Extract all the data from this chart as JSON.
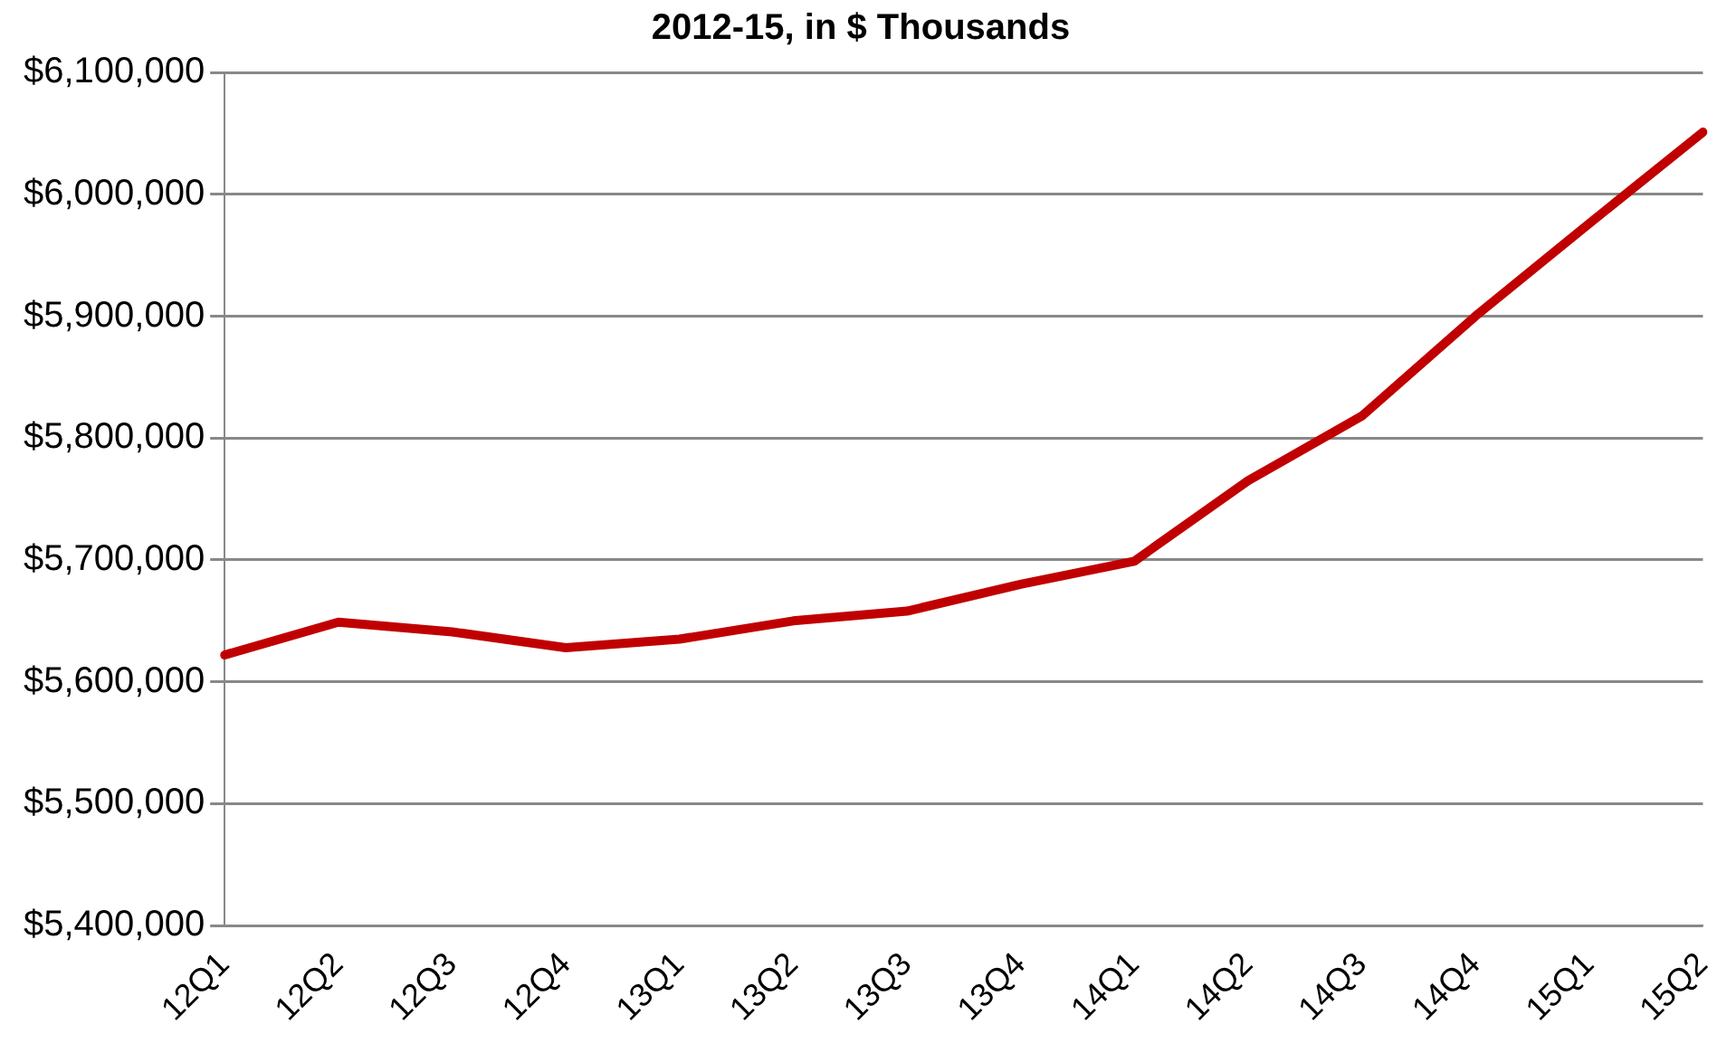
{
  "chart_data": {
    "type": "line",
    "title": "2012-15, in $ Thousands",
    "categories": [
      "12Q1",
      "12Q2",
      "12Q3",
      "12Q4",
      "13Q1",
      "13Q2",
      "13Q3",
      "13Q4",
      "14Q1",
      "14Q2",
      "14Q3",
      "14Q4",
      "15Q1",
      "15Q2"
    ],
    "series": [
      {
        "color": "#c00000",
        "values": [
          5622000,
          5649000,
          5641000,
          5628000,
          5635000,
          5650000,
          5658000,
          5680000,
          5699000,
          5765000,
          5818000,
          5900000,
          5976000,
          6051000
        ]
      }
    ],
    "ylim": [
      5400000,
      6100000
    ],
    "yticks": [
      {
        "value": 5400000,
        "label": "$5,400,000"
      },
      {
        "value": 5500000,
        "label": "$5,500,000"
      },
      {
        "value": 5600000,
        "label": "$5,600,000"
      },
      {
        "value": 5700000,
        "label": "$5,700,000"
      },
      {
        "value": 5800000,
        "label": "$5,800,000"
      },
      {
        "value": 5900000,
        "label": "$5,900,000"
      },
      {
        "value": 6000000,
        "label": "$6,000,000"
      },
      {
        "value": 6100000,
        "label": "$6,100,000"
      }
    ],
    "grid": "y",
    "legend": false,
    "marker": "none",
    "line_style": "solid"
  }
}
